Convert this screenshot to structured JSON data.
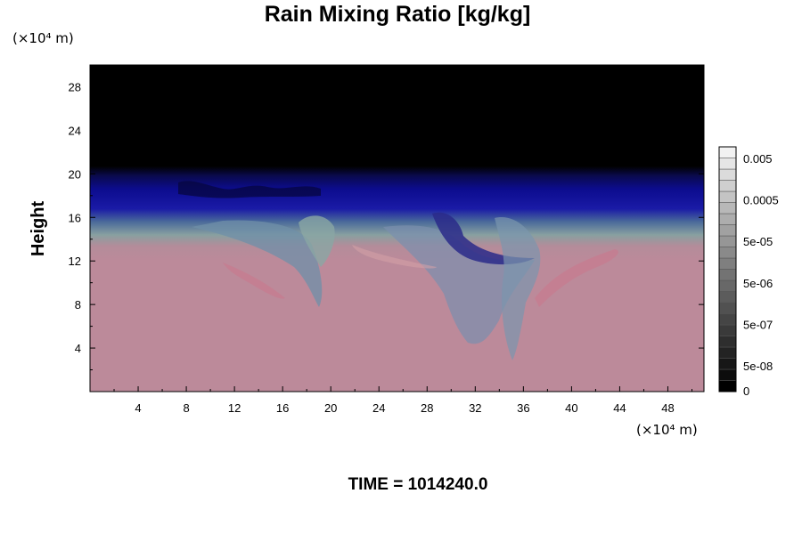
{
  "chart_data": {
    "type": "heatmap",
    "title": "Rain Mixing Ratio [kg/kg]",
    "ylabel": "Height",
    "x_unit_label": "(×10⁴ m)",
    "y_unit_label": "(×10⁴ m)",
    "x_ticks": [
      4,
      8,
      12,
      16,
      20,
      24,
      28,
      32,
      36,
      40,
      44,
      48
    ],
    "y_ticks": [
      4,
      8,
      12,
      16,
      20,
      24,
      28
    ],
    "xlim": [
      0,
      51
    ],
    "ylim": [
      0,
      30
    ],
    "grid": false,
    "colorbar": {
      "labels": [
        "0.005",
        "0.0005",
        "5e-05",
        "5e-06",
        "5e-07",
        "5e-08",
        "0"
      ],
      "levels": 22,
      "colors": {
        "min": "#000000",
        "max": "#f2f2f2"
      }
    },
    "field_description_colors": {
      "upper": "#000000",
      "band": "#0a0a8c",
      "lower": "#bc8a9a",
      "mid": "#6a8aa6"
    }
  },
  "footer": {
    "time_label": "TIME = 1014240.0"
  }
}
